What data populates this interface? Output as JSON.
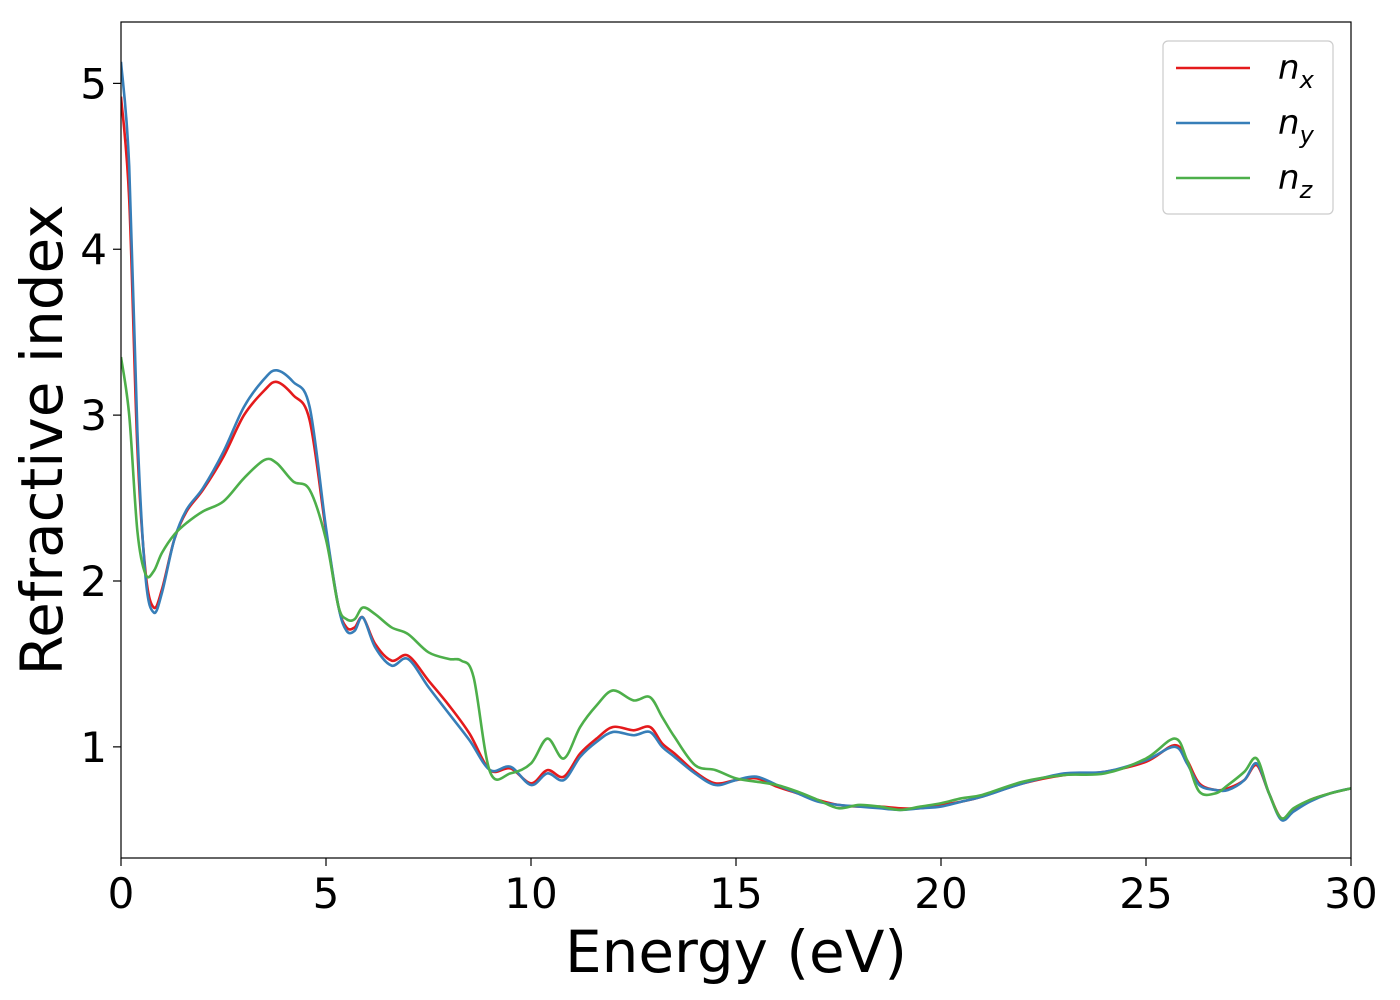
{
  "chart_data": {
    "type": "line",
    "xlabel": "Energy (eV)",
    "ylabel": "Refractive index",
    "xlim": [
      0,
      30
    ],
    "ylim": [
      0.33,
      5.37
    ],
    "xticks": [
      0,
      5,
      10,
      15,
      20,
      25,
      30
    ],
    "yticks": [
      1,
      2,
      3,
      4,
      5
    ],
    "grid": false,
    "legend_position": "top-right",
    "series": [
      {
        "name": "n",
        "subscript": "x",
        "color": "#e41a1c",
        "x": [
          0,
          0.2,
          0.4,
          0.6,
          0.8,
          1.0,
          1.3,
          1.6,
          2.0,
          2.5,
          3.0,
          3.5,
          3.8,
          4.2,
          4.6,
          5.0,
          5.3,
          5.5,
          5.7,
          5.9,
          6.2,
          6.6,
          7.0,
          7.5,
          8.0,
          8.5,
          9.0,
          9.5,
          10.0,
          10.4,
          10.8,
          11.2,
          11.6,
          12.0,
          12.5,
          12.9,
          13.2,
          13.5,
          14.0,
          14.5,
          15.0,
          15.5,
          16.0,
          16.5,
          17.0,
          17.5,
          18.0,
          18.5,
          19.0,
          19.5,
          20.0,
          20.5,
          21.0,
          22.0,
          23.0,
          24.0,
          25.0,
          25.7,
          26.0,
          26.3,
          26.7,
          27.0,
          27.4,
          27.7,
          28.0,
          28.3,
          28.6,
          29.0,
          29.5,
          30.0
        ],
        "y": [
          4.92,
          4.3,
          2.8,
          2.05,
          1.84,
          1.95,
          2.25,
          2.42,
          2.55,
          2.75,
          3.0,
          3.15,
          3.2,
          3.12,
          2.97,
          2.3,
          1.85,
          1.72,
          1.72,
          1.78,
          1.62,
          1.52,
          1.55,
          1.4,
          1.25,
          1.08,
          0.86,
          0.87,
          0.78,
          0.86,
          0.82,
          0.96,
          1.05,
          1.12,
          1.1,
          1.12,
          1.02,
          0.96,
          0.85,
          0.78,
          0.8,
          0.81,
          0.76,
          0.72,
          0.68,
          0.65,
          0.64,
          0.64,
          0.63,
          0.63,
          0.65,
          0.67,
          0.7,
          0.78,
          0.83,
          0.85,
          0.91,
          1.01,
          0.92,
          0.78,
          0.74,
          0.75,
          0.8,
          0.89,
          0.72,
          0.57,
          0.62,
          0.68,
          0.72,
          0.75
        ]
      },
      {
        "name": "n",
        "subscript": "y",
        "color": "#377eb8",
        "x": [
          0,
          0.2,
          0.4,
          0.6,
          0.8,
          1.0,
          1.3,
          1.6,
          2.0,
          2.5,
          3.0,
          3.5,
          3.8,
          4.2,
          4.6,
          5.0,
          5.3,
          5.5,
          5.7,
          5.9,
          6.2,
          6.6,
          7.0,
          7.5,
          8.0,
          8.5,
          9.0,
          9.5,
          10.0,
          10.4,
          10.8,
          11.2,
          11.6,
          12.0,
          12.5,
          12.9,
          13.2,
          13.5,
          14.0,
          14.5,
          15.0,
          15.5,
          16.0,
          16.5,
          17.0,
          17.5,
          18.0,
          18.5,
          19.0,
          19.5,
          20.0,
          20.5,
          21.0,
          22.0,
          23.0,
          24.0,
          25.0,
          25.7,
          26.0,
          26.3,
          26.7,
          27.0,
          27.4,
          27.7,
          28.0,
          28.3,
          28.6,
          29.0,
          29.5,
          30.0
        ],
        "y": [
          5.13,
          4.5,
          2.9,
          2.02,
          1.81,
          1.93,
          2.25,
          2.43,
          2.56,
          2.78,
          3.05,
          3.22,
          3.27,
          3.2,
          3.05,
          2.32,
          1.85,
          1.7,
          1.7,
          1.78,
          1.6,
          1.49,
          1.53,
          1.36,
          1.2,
          1.04,
          0.86,
          0.88,
          0.77,
          0.84,
          0.8,
          0.94,
          1.03,
          1.09,
          1.07,
          1.09,
          1.0,
          0.94,
          0.84,
          0.77,
          0.8,
          0.82,
          0.77,
          0.72,
          0.67,
          0.65,
          0.64,
          0.63,
          0.62,
          0.63,
          0.64,
          0.67,
          0.7,
          0.78,
          0.84,
          0.85,
          0.92,
          1.0,
          0.9,
          0.77,
          0.74,
          0.74,
          0.8,
          0.9,
          0.72,
          0.56,
          0.61,
          0.67,
          0.72,
          0.75
        ]
      },
      {
        "name": "n",
        "subscript": "z",
        "color": "#4daf4a",
        "x": [
          0,
          0.2,
          0.4,
          0.6,
          0.8,
          1.0,
          1.3,
          1.6,
          2.0,
          2.5,
          3.0,
          3.5,
          3.8,
          4.2,
          4.6,
          5.0,
          5.3,
          5.5,
          5.7,
          5.9,
          6.2,
          6.6,
          7.0,
          7.5,
          8.0,
          8.3,
          8.6,
          9.0,
          9.5,
          10.0,
          10.4,
          10.8,
          11.2,
          11.6,
          12.0,
          12.5,
          12.9,
          13.2,
          13.5,
          14.0,
          14.5,
          15.0,
          15.5,
          16.0,
          16.5,
          17.0,
          17.5,
          18.0,
          18.5,
          19.0,
          19.5,
          20.0,
          20.5,
          21.0,
          22.0,
          23.0,
          24.0,
          25.0,
          25.7,
          26.0,
          26.3,
          26.7,
          27.0,
          27.4,
          27.7,
          28.0,
          28.3,
          28.6,
          29.0,
          29.5,
          30.0
        ],
        "y": [
          3.35,
          3.0,
          2.3,
          2.04,
          2.06,
          2.17,
          2.28,
          2.35,
          2.42,
          2.48,
          2.62,
          2.73,
          2.71,
          2.6,
          2.55,
          2.25,
          1.85,
          1.77,
          1.77,
          1.84,
          1.8,
          1.72,
          1.68,
          1.57,
          1.53,
          1.52,
          1.42,
          0.85,
          0.84,
          0.9,
          1.05,
          0.93,
          1.12,
          1.25,
          1.34,
          1.28,
          1.3,
          1.18,
          1.06,
          0.89,
          0.86,
          0.81,
          0.79,
          0.77,
          0.73,
          0.68,
          0.63,
          0.65,
          0.64,
          0.62,
          0.64,
          0.66,
          0.69,
          0.71,
          0.79,
          0.83,
          0.84,
          0.93,
          1.05,
          0.92,
          0.73,
          0.72,
          0.77,
          0.85,
          0.93,
          0.72,
          0.57,
          0.63,
          0.68,
          0.72,
          0.75
        ]
      }
    ]
  }
}
